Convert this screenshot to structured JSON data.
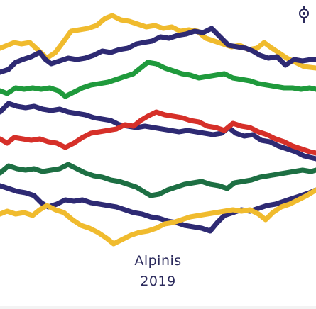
{
  "album": {
    "title": "Alpinis",
    "year": "2019"
  },
  "logo": {
    "icon": "balloon-logo-icon"
  },
  "colors": {
    "background": "#ffffff",
    "text": "#2b2a5c",
    "yellow": "#f0bb2e",
    "indigo": "#2e2a73",
    "green": "#1f9a3c",
    "red": "#d63029",
    "dark_green": "#1d6f43"
  }
}
